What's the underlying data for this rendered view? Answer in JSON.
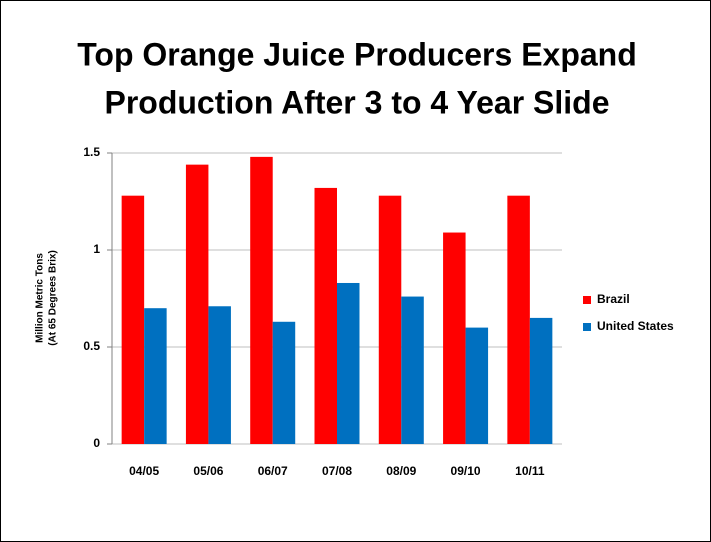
{
  "chart_data": {
    "type": "bar",
    "title": [
      "Top Orange Juice Producers Expand",
      "Production After 3 to 4 Year Slide"
    ],
    "y_label": [
      "Million Metric Tons",
      "(At 65 Degrees Brix)"
    ],
    "categories": [
      "04/05",
      "05/06",
      "06/07",
      "07/08",
      "08/09",
      "09/10",
      "10/11"
    ],
    "series": [
      {
        "name": "Brazil",
        "color": "#ff0000",
        "values": [
          1.28,
          1.44,
          1.48,
          1.32,
          1.28,
          1.09,
          1.28
        ]
      },
      {
        "name": "United States",
        "color": "#0070c0",
        "values": [
          0.7,
          0.71,
          0.63,
          0.83,
          0.76,
          0.6,
          0.65
        ]
      }
    ],
    "ylim": [
      0,
      1.5
    ],
    "yticks": [
      0,
      0.5,
      1,
      1.5
    ],
    "grid": true,
    "legend": "right"
  }
}
